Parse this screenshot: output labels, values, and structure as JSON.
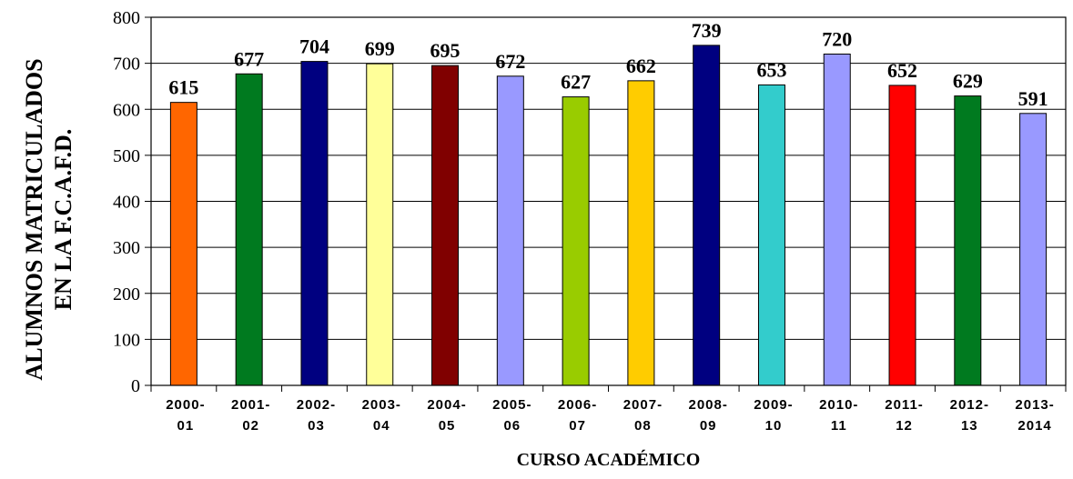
{
  "chart_data": {
    "type": "bar",
    "categories": [
      [
        "2000-",
        "01"
      ],
      [
        "2001-",
        "02"
      ],
      [
        "2002-",
        "03"
      ],
      [
        "2003-",
        "04"
      ],
      [
        "2004-",
        "05"
      ],
      [
        "2005-",
        "06"
      ],
      [
        "2006-",
        "07"
      ],
      [
        "2007-",
        "08"
      ],
      [
        "2008-",
        "09"
      ],
      [
        "2009-",
        "10"
      ],
      [
        "2010-",
        "11"
      ],
      [
        "2011-",
        "12"
      ],
      [
        "2012-",
        "13"
      ],
      [
        "2013-",
        "2014"
      ]
    ],
    "values": [
      615,
      677,
      704,
      699,
      695,
      672,
      627,
      662,
      739,
      653,
      720,
      652,
      629,
      591
    ],
    "bar_colors": [
      "#ff6600",
      "#007a1f",
      "#000080",
      "#ffff99",
      "#800000",
      "#9999ff",
      "#99cc00",
      "#ffcc00",
      "#000080",
      "#33cccc",
      "#9999ff",
      "#ff0000",
      "#007a1f",
      "#9999ff"
    ],
    "xlabel": "CURSO ACADÉMICO",
    "ylabel_lines": [
      "ALUMNOS MATRICULADOS",
      "EN LA F.C.A.F.D."
    ],
    "ylim": [
      0,
      800
    ],
    "yticks": [
      0,
      100,
      200,
      300,
      400,
      500,
      600,
      700,
      800
    ],
    "grid": true,
    "legend": "none"
  }
}
